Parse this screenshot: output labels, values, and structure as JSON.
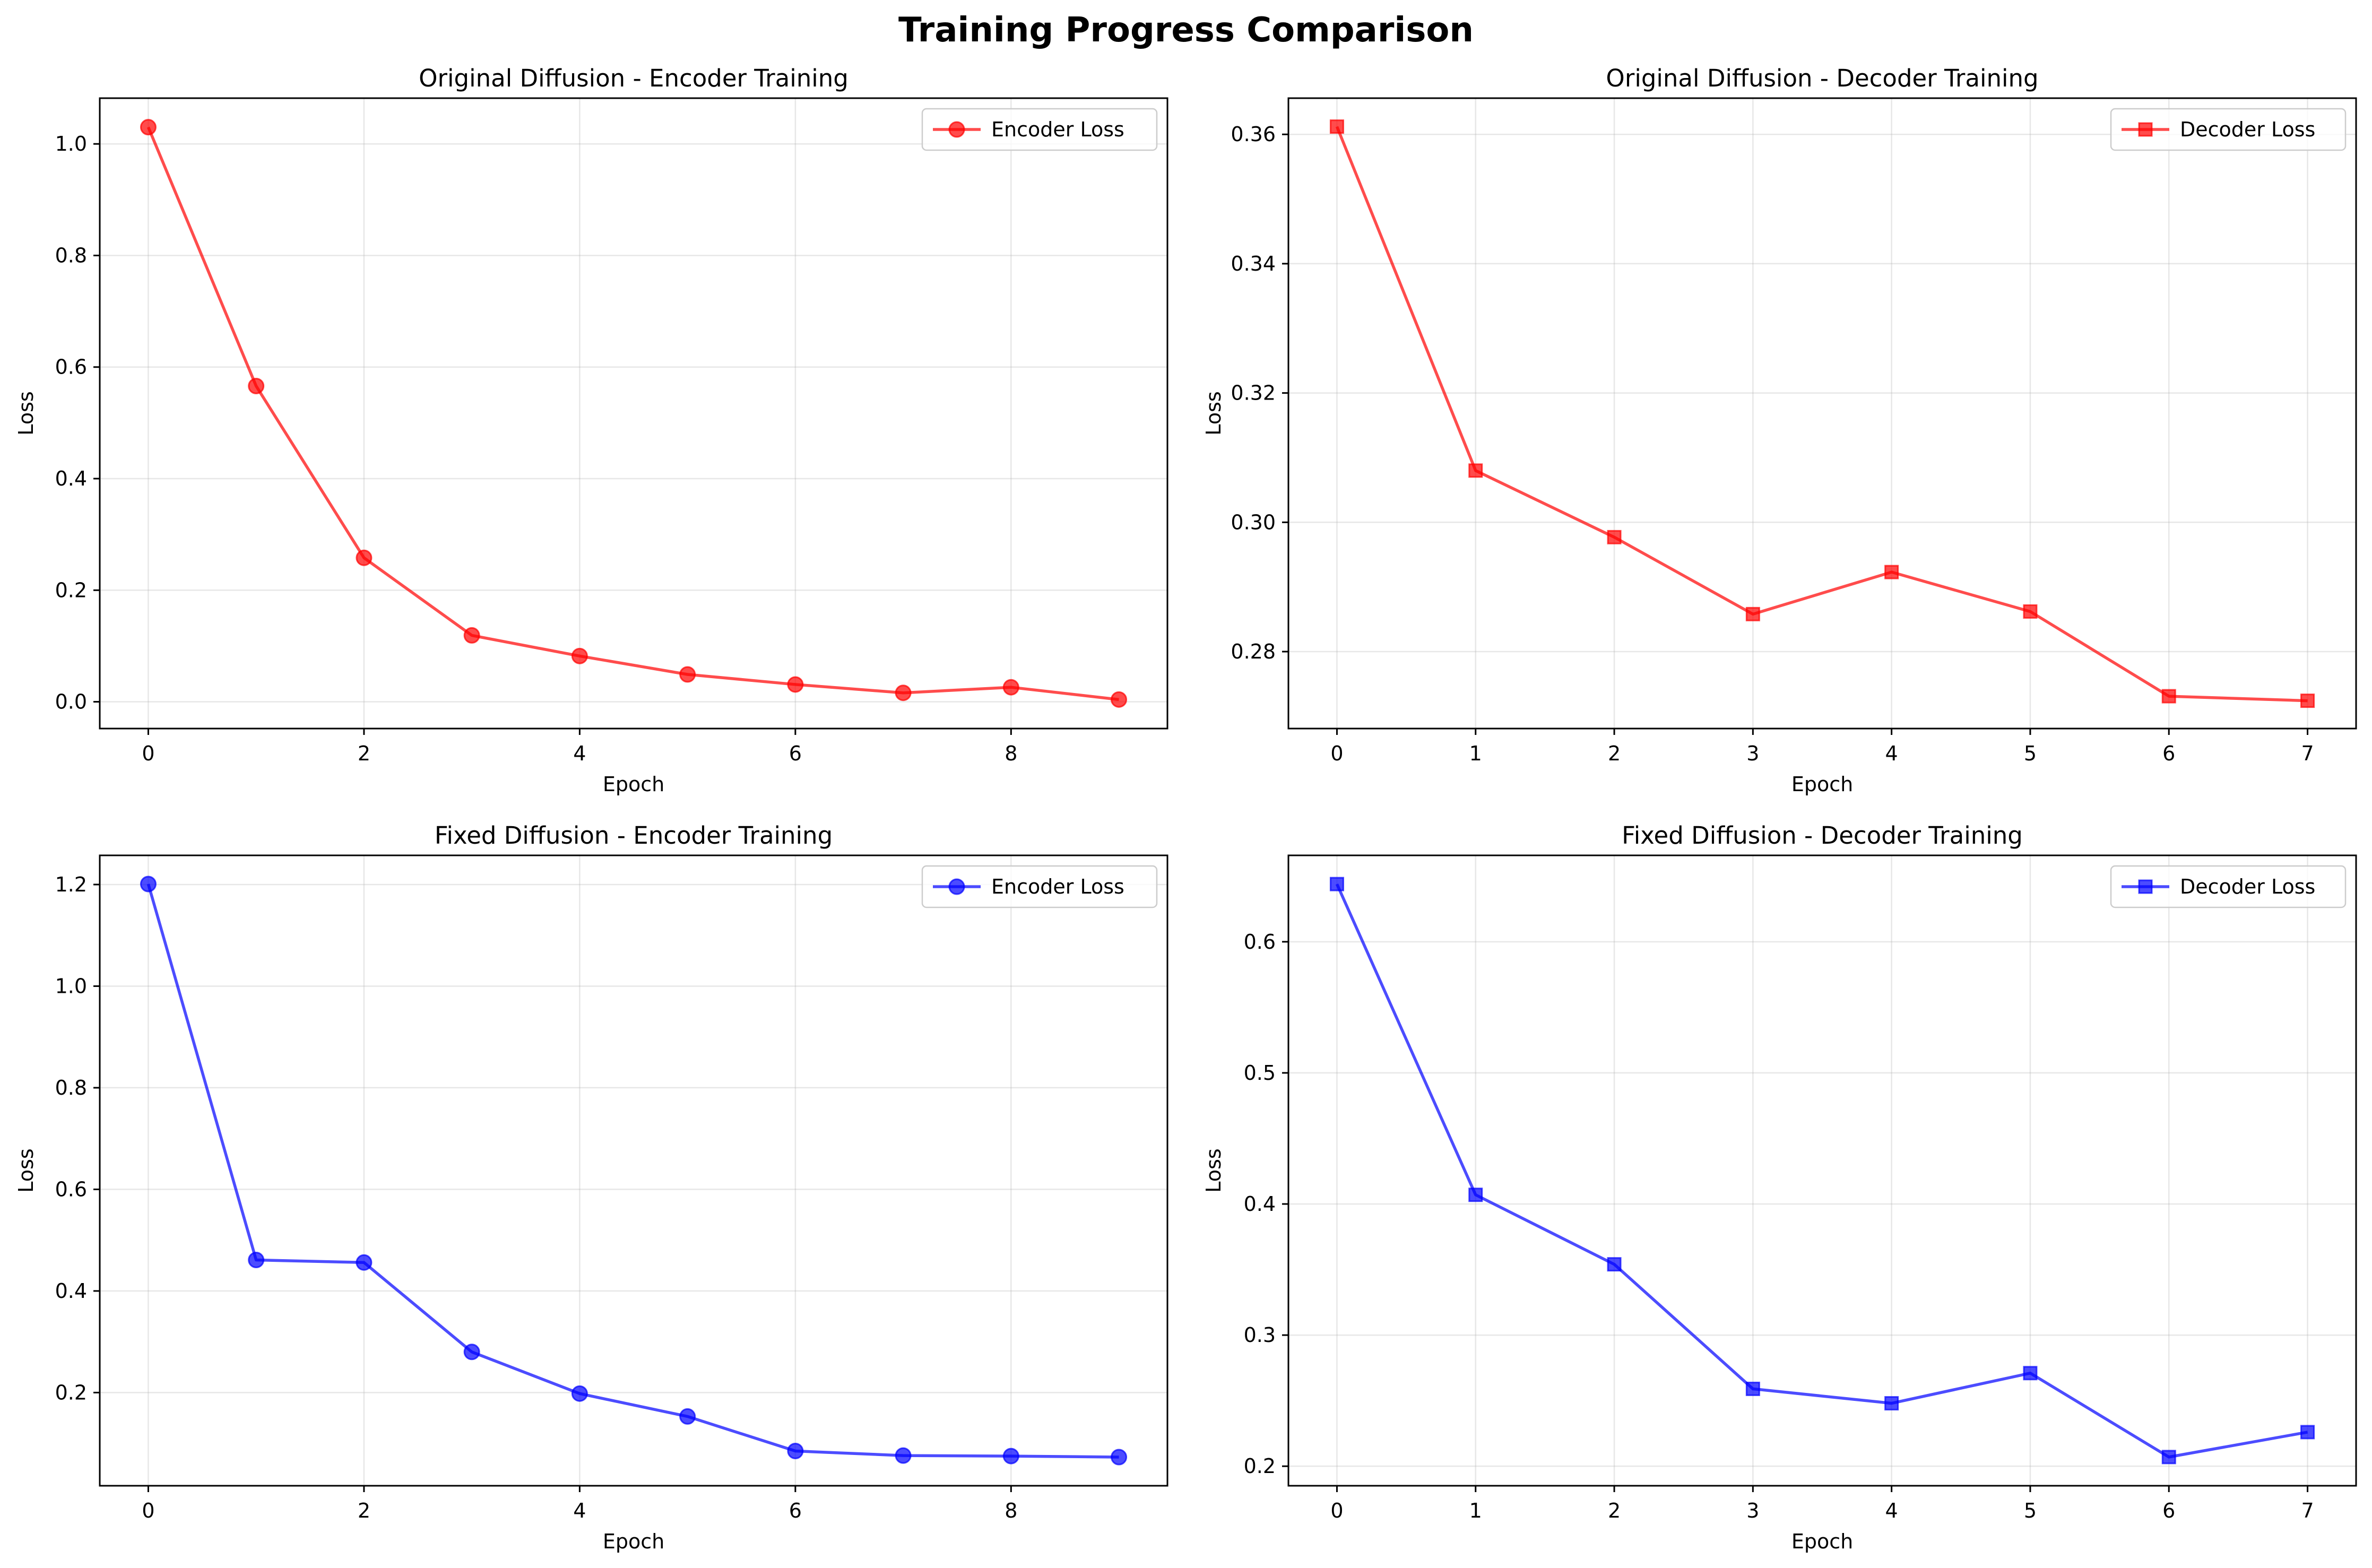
{
  "figure_title": "Training Progress Comparison",
  "chart_data": [
    {
      "type": "line",
      "title": "Original Diffusion - Encoder Training",
      "xlabel": "Epoch",
      "ylabel": "Loss",
      "x": [
        0,
        1,
        2,
        3,
        4,
        5,
        6,
        7,
        8,
        9
      ],
      "series": [
        {
          "name": "Encoder Loss",
          "values": [
            1.03,
            0.566,
            0.258,
            0.119,
            0.082,
            0.049,
            0.031,
            0.016,
            0.026,
            0.004
          ],
          "color": "#ff0000",
          "marker": "circle"
        }
      ],
      "xlim": [
        -0.45,
        9.45
      ],
      "ylim": [
        -0.048,
        1.082
      ],
      "xticks": [
        0,
        2,
        4,
        6,
        8
      ],
      "yticks": [
        0.0,
        0.2,
        0.4,
        0.6,
        0.8,
        1.0
      ],
      "ytick_labels": [
        "0.0",
        "0.2",
        "0.4",
        "0.6",
        "0.8",
        "1.0"
      ],
      "grid": true,
      "legend_position": "upper right"
    },
    {
      "type": "line",
      "title": "Original Diffusion - Decoder Training",
      "xlabel": "Epoch",
      "ylabel": "Loss",
      "x": [
        0,
        1,
        2,
        3,
        4,
        5,
        6,
        7
      ],
      "series": [
        {
          "name": "Decoder Loss",
          "values": [
            0.3612,
            0.308,
            0.2977,
            0.2858,
            0.2923,
            0.2862,
            0.2731,
            0.2724
          ],
          "color": "#ff0000",
          "marker": "square"
        }
      ],
      "xlim": [
        -0.35,
        7.35
      ],
      "ylim": [
        0.2681,
        0.3656
      ],
      "xticks": [
        0,
        1,
        2,
        3,
        4,
        5,
        6,
        7
      ],
      "yticks": [
        0.28,
        0.3,
        0.32,
        0.34,
        0.36
      ],
      "ytick_labels": [
        "0.28",
        "0.30",
        "0.32",
        "0.34",
        "0.36"
      ],
      "grid": true,
      "legend_position": "upper right"
    },
    {
      "type": "line",
      "title": "Fixed Diffusion - Encoder Training",
      "xlabel": "Epoch",
      "ylabel": "Loss",
      "x": [
        0,
        1,
        2,
        3,
        4,
        5,
        6,
        7,
        8,
        9
      ],
      "series": [
        {
          "name": "Encoder Loss",
          "values": [
            1.201,
            0.461,
            0.456,
            0.28,
            0.198,
            0.153,
            0.085,
            0.076,
            0.075,
            0.073
          ],
          "color": "#0000ff",
          "marker": "circle"
        }
      ],
      "xlim": [
        -0.45,
        9.45
      ],
      "ylim": [
        0.0166,
        1.2574
      ],
      "xticks": [
        0,
        2,
        4,
        6,
        8
      ],
      "yticks": [
        0.2,
        0.4,
        0.6,
        0.8,
        1.0,
        1.2
      ],
      "ytick_labels": [
        "0.2",
        "0.4",
        "0.6",
        "0.8",
        "1.0",
        "1.2"
      ],
      "grid": true,
      "legend_position": "upper right"
    },
    {
      "type": "line",
      "title": "Fixed Diffusion - Decoder Training",
      "xlabel": "Epoch",
      "ylabel": "Loss",
      "x": [
        0,
        1,
        2,
        3,
        4,
        5,
        6,
        7
      ],
      "series": [
        {
          "name": "Decoder Loss",
          "values": [
            0.644,
            0.407,
            0.354,
            0.259,
            0.248,
            0.271,
            0.207,
            0.226
          ],
          "color": "#0000ff",
          "marker": "square"
        }
      ],
      "xlim": [
        -0.35,
        7.35
      ],
      "ylim": [
        0.1851,
        0.6659
      ],
      "xticks": [
        0,
        1,
        2,
        3,
        4,
        5,
        6,
        7
      ],
      "yticks": [
        0.2,
        0.3,
        0.4,
        0.5,
        0.6
      ],
      "ytick_labels": [
        "0.2",
        "0.3",
        "0.4",
        "0.5",
        "0.6"
      ],
      "grid": true,
      "legend_position": "upper right"
    }
  ]
}
